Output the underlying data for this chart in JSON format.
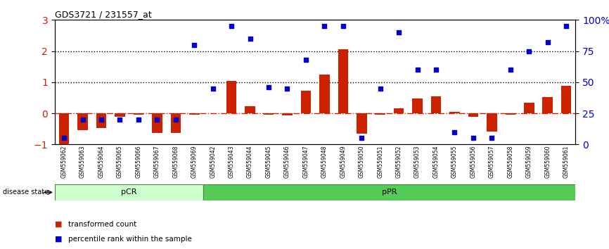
{
  "title": "GDS3721 / 231557_at",
  "samples": [
    "GSM559062",
    "GSM559063",
    "GSM559064",
    "GSM559065",
    "GSM559066",
    "GSM559067",
    "GSM559068",
    "GSM559069",
    "GSM559042",
    "GSM559043",
    "GSM559044",
    "GSM559045",
    "GSM559046",
    "GSM559047",
    "GSM559048",
    "GSM559049",
    "GSM559050",
    "GSM559051",
    "GSM559052",
    "GSM559053",
    "GSM559054",
    "GSM559055",
    "GSM559056",
    "GSM559057",
    "GSM559058",
    "GSM559059",
    "GSM559060",
    "GSM559061"
  ],
  "transformed_count": [
    -1.0,
    -0.55,
    -0.48,
    -0.12,
    -0.05,
    -0.62,
    -0.62,
    -0.05,
    0.0,
    1.05,
    0.22,
    -0.05,
    -0.07,
    0.72,
    1.25,
    2.05,
    -0.65,
    -0.05,
    0.15,
    0.48,
    0.55,
    0.05,
    -0.12,
    -0.58,
    -0.05,
    0.35,
    0.52,
    0.88
  ],
  "percentile_rank": [
    5,
    20,
    20,
    20,
    20,
    20,
    20,
    80,
    45,
    95,
    85,
    46,
    45,
    68,
    95,
    95,
    5,
    45,
    90,
    60,
    60,
    10,
    5,
    5,
    60,
    75,
    82,
    95
  ],
  "group_pCR_count": 8,
  "group_pPR_count": 20,
  "pCR_label": "pCR",
  "pPR_label": "pPR",
  "disease_state_label": "disease state",
  "legend_transformed": "transformed count",
  "legend_percentile": "percentile rank within the sample",
  "bar_color": "#cc2200",
  "dot_color": "#0000cc",
  "ylim_left": [
    -1.0,
    3.0
  ],
  "ylim_right": [
    0,
    100
  ],
  "yticks_left": [
    -1,
    0,
    1,
    2,
    3
  ],
  "yticks_right": [
    0,
    25,
    50,
    75,
    100
  ],
  "hline_y": [
    1,
    2
  ],
  "hline_color": "black",
  "hline_zero_color": "#cc2200",
  "pCR_color": "#ccffcc",
  "pPR_color": "#55cc55",
  "bar_width": 0.55
}
